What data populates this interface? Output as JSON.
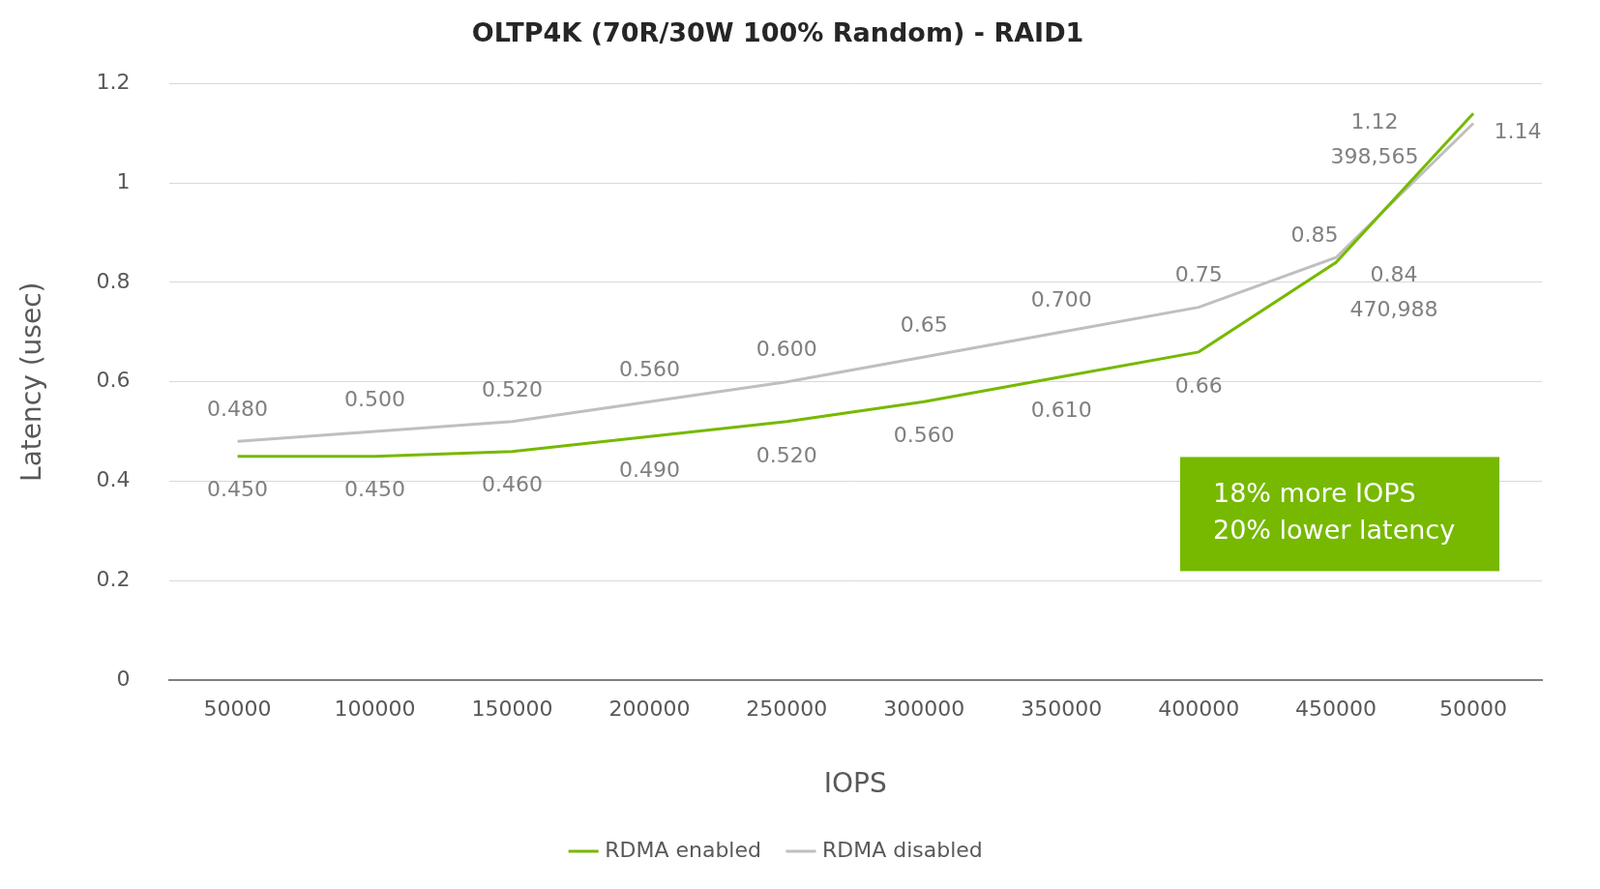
{
  "chart_data": {
    "type": "line",
    "title": "OLTP4K (70R/30W 100% Random) - RAID1",
    "x_label": "IOPS",
    "y_label": "Latency (usec)",
    "categories": [
      "50000",
      "100000",
      "150000",
      "200000",
      "250000",
      "300000",
      "350000",
      "400000",
      "450000",
      "50000"
    ],
    "series": [
      {
        "name": "RDMA enabled",
        "color": "#76b900",
        "values": [
          0.45,
          0.45,
          0.46,
          0.49,
          0.52,
          0.56,
          0.61,
          0.66,
          0.84,
          1.14
        ],
        "value_labels": [
          "0.450",
          "0.450",
          "0.460",
          "0.490",
          "0.520",
          "0.560",
          "0.610",
          "0.66",
          "0.84",
          "1.14"
        ]
      },
      {
        "name": "RDMA disabled",
        "color": "#bfbfbf",
        "values": [
          0.48,
          0.5,
          0.52,
          0.56,
          0.6,
          0.65,
          0.7,
          0.75,
          0.85,
          1.12
        ],
        "value_labels": [
          "0.480",
          "0.500",
          "0.520",
          "0.560",
          "0.600",
          "0.65",
          "0.700",
          "0.75",
          "0.85",
          "1.12"
        ]
      }
    ],
    "ylim": [
      0,
      1.2
    ],
    "yticks": [
      0,
      0.2,
      0.4,
      0.6,
      0.8,
      1,
      1.2
    ],
    "grid": true,
    "legend": "bottom",
    "data_labels": true,
    "annotations": [
      {
        "text": "398,565",
        "series": "RDMA disabled",
        "category_index": 9
      },
      {
        "text": "470,988",
        "series": "RDMA enabled",
        "category_index": 8
      }
    ],
    "callout": {
      "lines": [
        "18% more IOPS",
        "20% lower latency"
      ],
      "color": "#76b900"
    }
  }
}
